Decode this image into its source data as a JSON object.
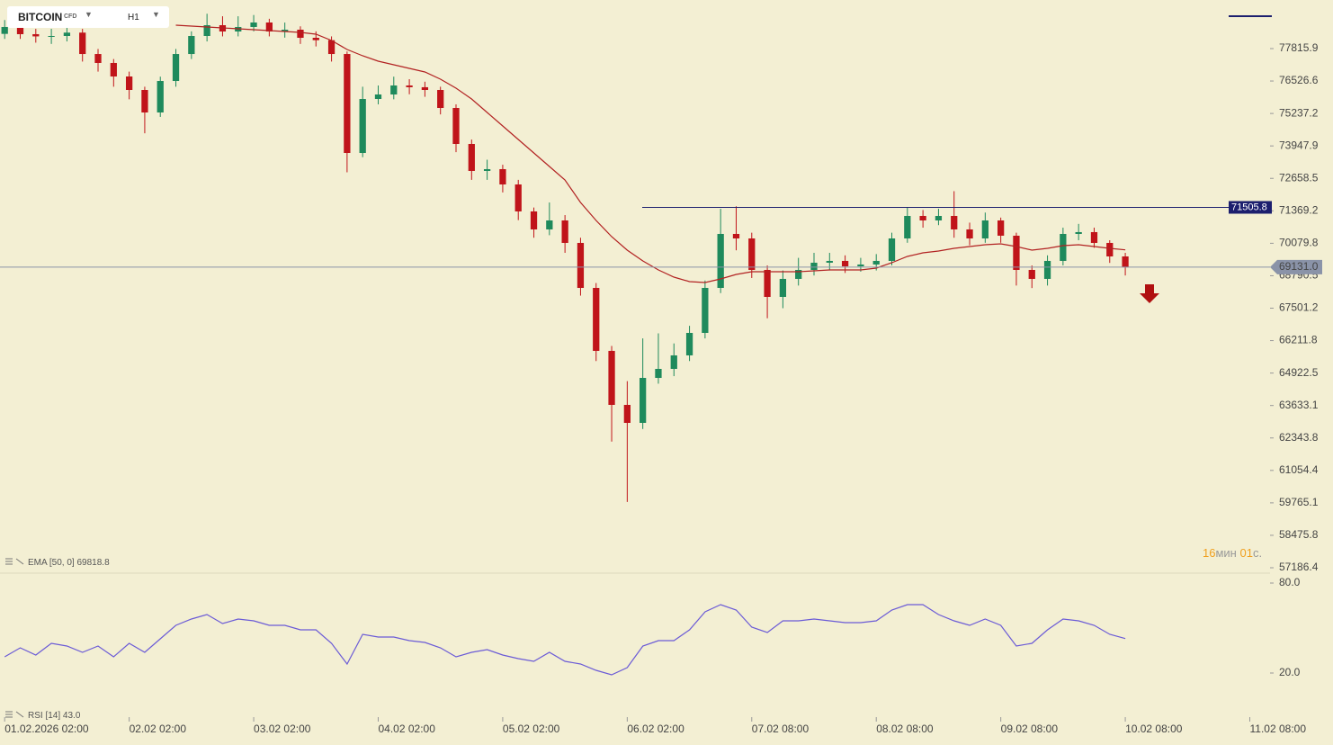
{
  "toolbar": {
    "symbol": "BITCOIN",
    "market": "CFD",
    "timeframe": "H1"
  },
  "countdown": {
    "minutes": "16",
    "min_unit": "мин",
    "seconds": "01",
    "sec_unit": "с."
  },
  "chart_data": [
    {
      "type": "candlestick",
      "up_color": "#1e8a5c",
      "down_color": "#c0141a",
      "xlim": [
        -0.3,
        81.3
      ],
      "ylim": [
        57008,
        79746
      ],
      "yticks": [
        57186.4,
        58475.8,
        59765.1,
        61054.4,
        62343.8,
        63633.1,
        64922.5,
        66211.8,
        67501.2,
        68790.5,
        70079.8,
        71369.2,
        72658.5,
        73947.9,
        75237.2,
        76526.6,
        77815.9
      ],
      "series": [
        {
          "name": "BITCOIN",
          "open": [
            78400,
            78674,
            78388,
            78300,
            78316,
            78450,
            77600,
            77244,
            76707,
            76171,
            75277,
            76528,
            77600,
            78316,
            78745,
            78495,
            78674,
            78852,
            78495,
            78566,
            78244,
            78150,
            77600,
            73668,
            75813,
            75992,
            76350,
            76280,
            76171,
            75456,
            74026,
            72954,
            73025,
            72417,
            71345,
            70630,
            70987,
            70094,
            68306,
            65804,
            63658,
            62943,
            64730,
            65088,
            65625,
            66518,
            68306,
            70451,
            70272,
            69021,
            67948,
            68664,
            69021,
            69307,
            69379,
            69164,
            69236,
            69379,
            70272,
            71166,
            70987,
            71166,
            70630,
            70272,
            70987,
            70380,
            69021,
            68664,
            69379,
            70451,
            70523,
            70094,
            69557
          ],
          "high": [
            78950,
            78900,
            78600,
            78600,
            78750,
            78600,
            77800,
            77400,
            76900,
            76300,
            76700,
            77800,
            78500,
            79200,
            79100,
            79100,
            79150,
            79000,
            78850,
            78700,
            78500,
            78300,
            77700,
            76300,
            76350,
            76700,
            76600,
            76500,
            76300,
            75600,
            74200,
            73400,
            73200,
            72600,
            71500,
            71700,
            71200,
            70300,
            68500,
            66000,
            64600,
            66300,
            66500,
            66100,
            66800,
            68600,
            71450,
            71550,
            70500,
            69200,
            69000,
            69500,
            69700,
            69700,
            69600,
            69500,
            69650,
            70500,
            71500,
            71400,
            71450,
            72150,
            70900,
            71300,
            71100,
            70500,
            69200,
            69600,
            70700,
            70850,
            70700,
            70200,
            69700
          ],
          "low": [
            78200,
            78200,
            78050,
            78000,
            78100,
            77300,
            76900,
            76300,
            75800,
            74450,
            75100,
            76300,
            77400,
            78100,
            78300,
            78300,
            78500,
            78300,
            78250,
            78000,
            77900,
            77300,
            72900,
            73500,
            75600,
            75800,
            76000,
            75900,
            75200,
            73700,
            72600,
            72600,
            72100,
            71000,
            70300,
            70400,
            69700,
            68000,
            65400,
            62200,
            59800,
            62700,
            64500,
            64800,
            65400,
            66300,
            68100,
            69800,
            68700,
            67100,
            67500,
            68400,
            68800,
            69000,
            68900,
            68950,
            69000,
            69200,
            70100,
            70700,
            70800,
            70300,
            70000,
            70100,
            70100,
            68400,
            68300,
            68400,
            69200,
            70200,
            69900,
            69300,
            68800
          ],
          "close": [
            78674,
            78388,
            78300,
            78316,
            78450,
            77600,
            77244,
            76707,
            76171,
            75277,
            76528,
            77600,
            78316,
            78745,
            78495,
            78674,
            78852,
            78495,
            78566,
            78244,
            78150,
            77600,
            73668,
            75813,
            75992,
            76350,
            76280,
            76171,
            75456,
            74026,
            72954,
            73025,
            72417,
            71345,
            70630,
            70987,
            70094,
            68306,
            65804,
            63658,
            62943,
            64730,
            65088,
            65625,
            66518,
            68306,
            70451,
            70272,
            69021,
            67948,
            68664,
            69021,
            69307,
            69379,
            69164,
            69236,
            69379,
            70272,
            71166,
            70987,
            71166,
            70630,
            70272,
            70987,
            70380,
            69021,
            68664,
            69379,
            70451,
            70523,
            70094,
            69557,
            69131
          ]
        },
        {
          "name": "EMA [50, 0]",
          "color": "#b22222",
          "last_value": 69818.8,
          "values": [
            null,
            null,
            null,
            null,
            null,
            null,
            null,
            null,
            null,
            null,
            null,
            78745,
            78709,
            78674,
            78638,
            78602,
            78566,
            78530,
            78495,
            78459,
            78388,
            78137,
            77780,
            77530,
            77315,
            77172,
            77029,
            76886,
            76600,
            76243,
            75814,
            75277,
            74741,
            74205,
            73668,
            73132,
            72596,
            71702,
            70987,
            70344,
            69808,
            69379,
            69021,
            68735,
            68557,
            68521,
            68664,
            68842,
            68950,
            68950,
            68950,
            68950,
            68985,
            69021,
            69021,
            69021,
            69093,
            69307,
            69557,
            69700,
            69772,
            69879,
            69951,
            70022,
            70058,
            69951,
            69808,
            69879,
            69986,
            70022,
            69951,
            69879,
            69819
          ]
        }
      ],
      "hlines": [
        {
          "value": 71505.8,
          "color": "#1c1f6e"
        },
        {
          "value": 69131,
          "label": "69131.0",
          "color": "#8a93a8"
        }
      ]
    },
    {
      "type": "line",
      "xlim": [
        -0.3,
        81.3
      ],
      "ylim": [
        -8.2,
        86
      ],
      "yticks": [
        {
          "value": 80,
          "label": "80.0"
        },
        {
          "value": 20,
          "label": "20.0"
        }
      ],
      "xticks": [
        {
          "value": 0,
          "label": "01.02.2026  02:00"
        },
        {
          "value": 8,
          "label": "02.02  02:00"
        },
        {
          "value": 16,
          "label": "03.02  02:00"
        },
        {
          "value": 24,
          "label": "04.02  02:00"
        },
        {
          "value": 32,
          "label": "05.02  02:00"
        },
        {
          "value": 40,
          "label": "06.02  02:00"
        },
        {
          "value": 48,
          "label": "07.02  08:00"
        },
        {
          "value": 56,
          "label": "08.02  08:00"
        },
        {
          "value": 64,
          "label": "09.02  08:00"
        },
        {
          "value": 72,
          "label": "10.02  08:00"
        },
        {
          "value": 80,
          "label": "11.02  08:00"
        }
      ],
      "series": [
        {
          "name": "RSI [14]",
          "color": "#6b5bd6",
          "last_value": 43,
          "value_label": "43.0",
          "values": [
            30.8,
            36.8,
            32,
            39.8,
            38,
            33.8,
            38,
            30.8,
            39.8,
            33.8,
            42.8,
            51.8,
            56,
            59,
            53,
            56,
            54.8,
            51.8,
            51.8,
            48.8,
            48.8,
            39.8,
            26,
            45.8,
            44,
            44,
            41.6,
            40.4,
            36.8,
            30.8,
            33.8,
            35.6,
            32,
            29.6,
            27.8,
            33.8,
            27.8,
            26,
            21.8,
            18.8,
            23.6,
            38,
            41.6,
            41.6,
            48.8,
            60.8,
            65.6,
            62,
            50.6,
            47,
            54.8,
            54.8,
            56,
            54.8,
            53.6,
            53.6,
            54.8,
            62,
            65.6,
            65.6,
            59,
            54.8,
            51.8,
            56,
            51.8,
            38,
            39.8,
            48.8,
            56,
            54.8,
            51.8,
            45.8,
            43
          ]
        }
      ]
    }
  ]
}
